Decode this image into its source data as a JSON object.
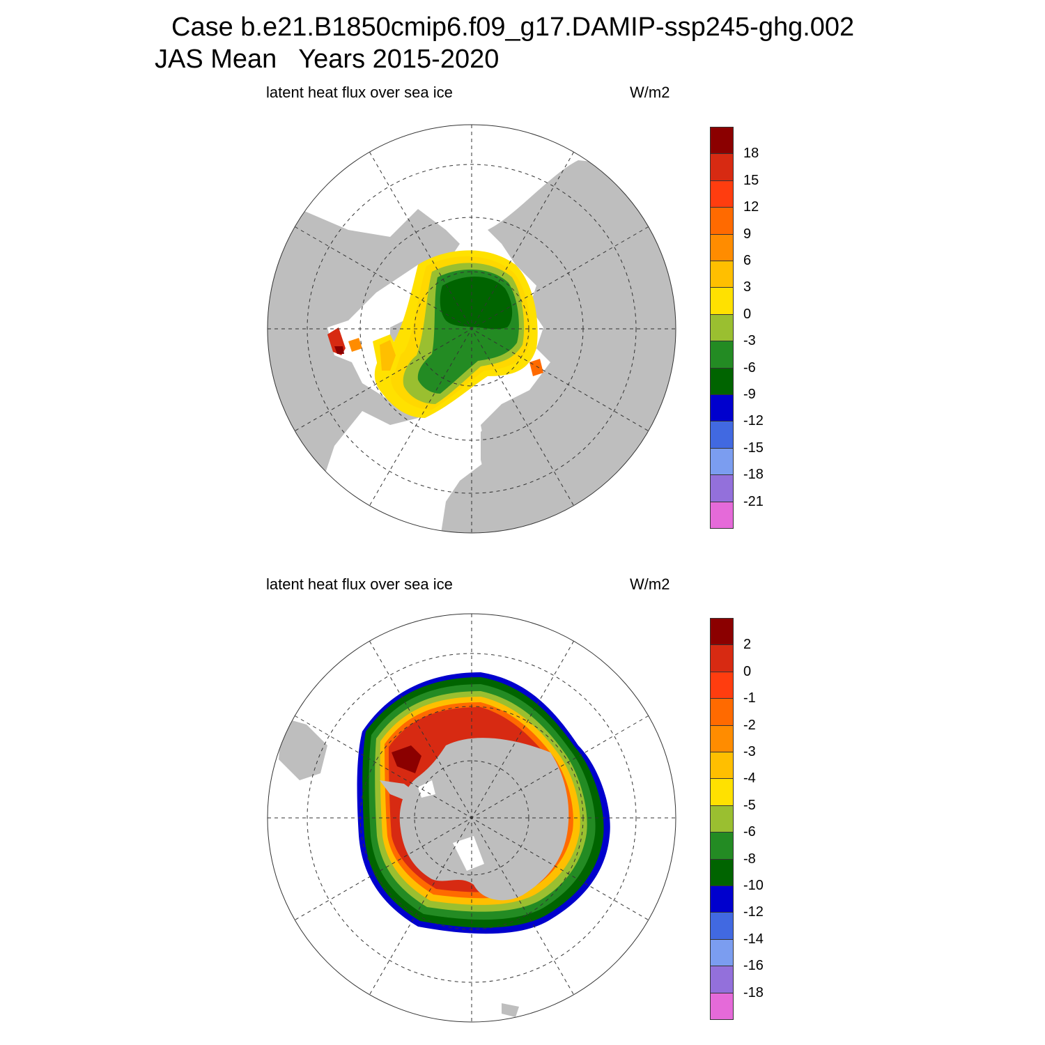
{
  "title": {
    "line1": "Case b.e21.B1850cmip6.f09_g17.DAMIP-ssp245-ghg.002",
    "line2": "JAS Mean   Years 2015-2020"
  },
  "panels": [
    {
      "hemisphere": "north",
      "subtitle": "latent heat flux over sea ice",
      "units": "W/m2",
      "colorbar": {
        "labels": [
          "18",
          "15",
          "12",
          "9",
          "6",
          "3",
          "0",
          "-3",
          "-6",
          "-9",
          "-12",
          "-15",
          "-18",
          "-21"
        ],
        "colors": [
          "#8b0000",
          "#d72a12",
          "#ff3d0f",
          "#ff6a00",
          "#ff8c00",
          "#ffbf00",
          "#ffe100",
          "#9abf30",
          "#238b23",
          "#006400",
          "#0000cd",
          "#4169e1",
          "#7b9df0",
          "#9370db",
          "#e56ad9"
        ]
      }
    },
    {
      "hemisphere": "south",
      "subtitle": "latent heat flux over sea ice",
      "units": "W/m2",
      "colorbar": {
        "labels": [
          "2",
          "0",
          "-1",
          "-2",
          "-3",
          "-4",
          "-5",
          "-6",
          "-8",
          "-10",
          "-12",
          "-14",
          "-16",
          "-18"
        ],
        "colors": [
          "#8b0000",
          "#d72a12",
          "#ff3d0f",
          "#ff6a00",
          "#ff8c00",
          "#ffbf00",
          "#ffe100",
          "#9abf30",
          "#238b23",
          "#006400",
          "#0000cd",
          "#4169e1",
          "#7b9df0",
          "#9370db",
          "#e56ad9"
        ]
      }
    }
  ],
  "colors": {
    "land": "#bebebe",
    "ocean": "#ffffff",
    "grid": "#333333"
  }
}
